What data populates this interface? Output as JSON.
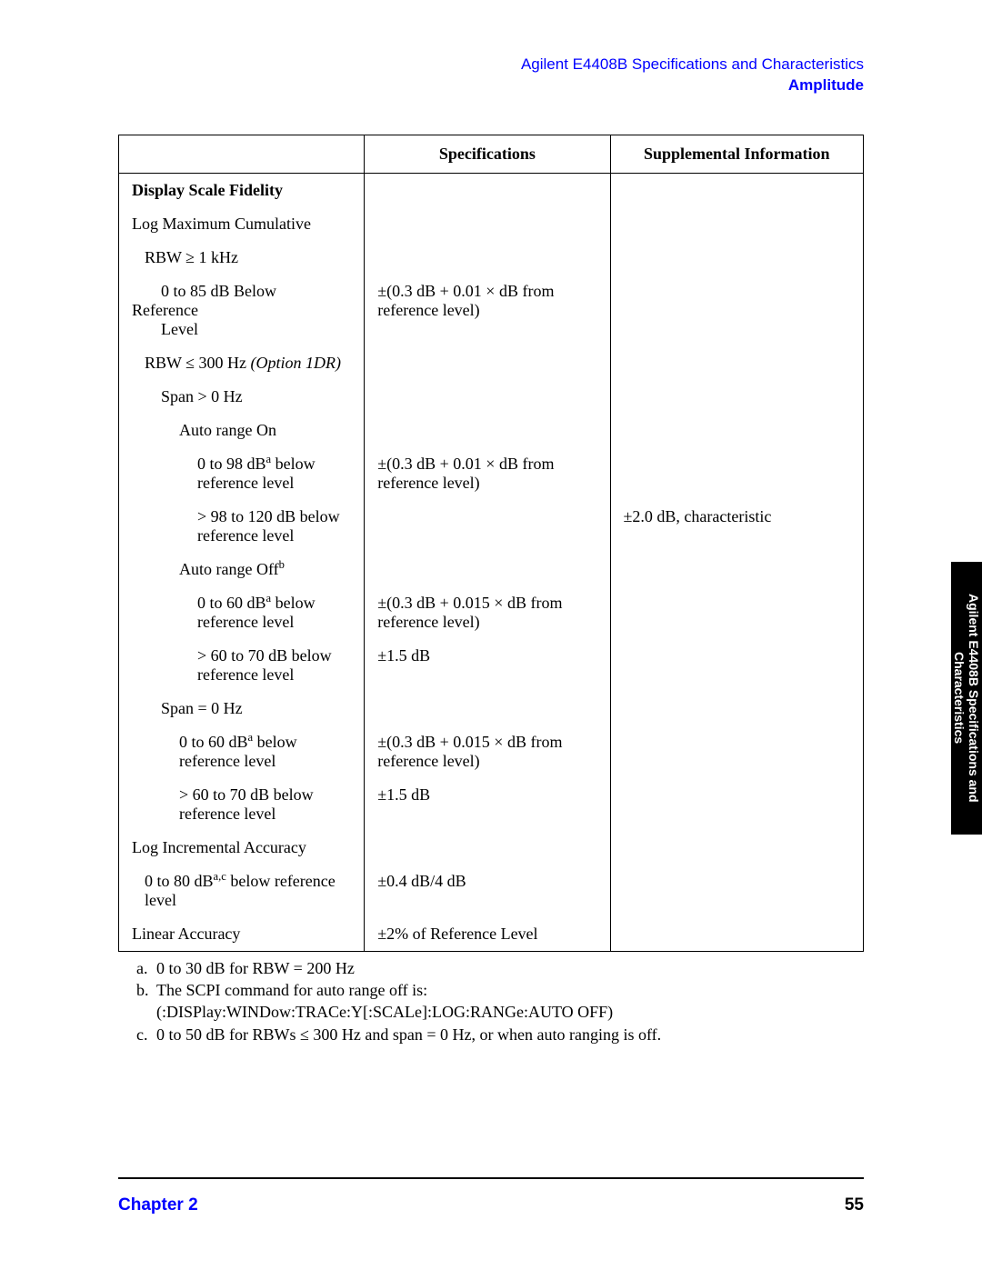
{
  "header": {
    "line1": "Agilent E4408B Specifications and Characteristics",
    "line2": "Amplitude"
  },
  "table": {
    "columns": [
      "",
      "Specifications",
      "Supplemental Information"
    ],
    "rows": [
      {
        "c0": "Display Scale Fidelity",
        "c0_class": "bold",
        "c1": "",
        "c2": ""
      },
      {
        "c0": "Log Maximum Cumulative",
        "c1": "",
        "c2": ""
      },
      {
        "c0": "RBW ≥ 1 kHz",
        "c0_indent": "i1",
        "c1": "",
        "c2": ""
      },
      {
        "c0_html": "<span class=\"i2\">0 to 85 dB Below</span>Reference<br><span class=\"i2\">Level</span>",
        "c1": "±(0.3 dB + 0.01 × dB from reference level)",
        "c2": ""
      },
      {
        "c0_html": "<span class=\"i1\">RBW ≤ 300 Hz <span class=\"ital\">(Option 1DR)</span></span>",
        "c1": "",
        "c2": ""
      },
      {
        "c0": "Span > 0 Hz",
        "c0_indent": "i2",
        "c1": "",
        "c2": ""
      },
      {
        "c0": "Auto range On",
        "c0_indent": "i3",
        "c1": "",
        "c2": ""
      },
      {
        "c0_html": "<span class=\"i4\">0 to 98 dB<sup>a</sup> below reference level</span>",
        "c1": "±(0.3 dB + 0.01 × dB from reference level)",
        "c2": ""
      },
      {
        "c0_html": "<span class=\"i4\">> 98 to 120 dB below reference level</span>",
        "c1": "",
        "c2": "±2.0 dB, characteristic"
      },
      {
        "c0_html": "<span class=\"i3\">Auto range Off<sup>b</sup></span>",
        "c1": "",
        "c2": ""
      },
      {
        "c0_html": "<span class=\"i4\">0 to 60 dB<sup>a</sup> below reference level</span>",
        "c1": "±(0.3 dB + 0.015 × dB from reference level)",
        "c2": ""
      },
      {
        "c0_html": "<span class=\"i4\">> 60 to 70 dB below reference level</span>",
        "c1": "±1.5 dB",
        "c2": ""
      },
      {
        "c0": "Span = 0 Hz",
        "c0_indent": "i2",
        "c1": "",
        "c2": ""
      },
      {
        "c0_html": "<span class=\"i3\">0 to 60 dB<sup>a</sup> below reference level</span>",
        "c1": "±(0.3 dB + 0.015 × dB from reference level)",
        "c2": ""
      },
      {
        "c0_html": "<span class=\"i3\">> 60 to 70 dB below reference level</span>",
        "c1": "±1.5 dB",
        "c2": ""
      },
      {
        "c0": "Log Incremental Accuracy",
        "c1": "",
        "c2": ""
      },
      {
        "c0_html": "<span class=\"i1\">0 to 80 dB<sup>a,c</sup> below reference level</span>",
        "c1": "±0.4 dB/4 dB",
        "c2": ""
      },
      {
        "c0": "Linear Accuracy",
        "c1": "±2% of Reference Level",
        "c2": "",
        "last": true
      }
    ]
  },
  "footnotes": [
    {
      "label": "a.",
      "text": "0 to 30 dB for RBW = 200 Hz"
    },
    {
      "label": "b.",
      "text": "The SCPI command for auto range off is:\n(:DISPlay:WINDow:TRACe:Y[:SCALe]:LOG:RANGe:AUTO OFF)"
    },
    {
      "label": "c.",
      "text": "0 to 50 dB for RBWs ≤ 300 Hz and span = 0 Hz, or when auto ranging is off."
    }
  ],
  "side_tab": "Agilent E4408B Specifications and\nCharacteristics",
  "footer": {
    "chapter": "Chapter 2",
    "page": "55"
  },
  "col_widths": [
    "33%",
    "33%",
    "34%"
  ]
}
